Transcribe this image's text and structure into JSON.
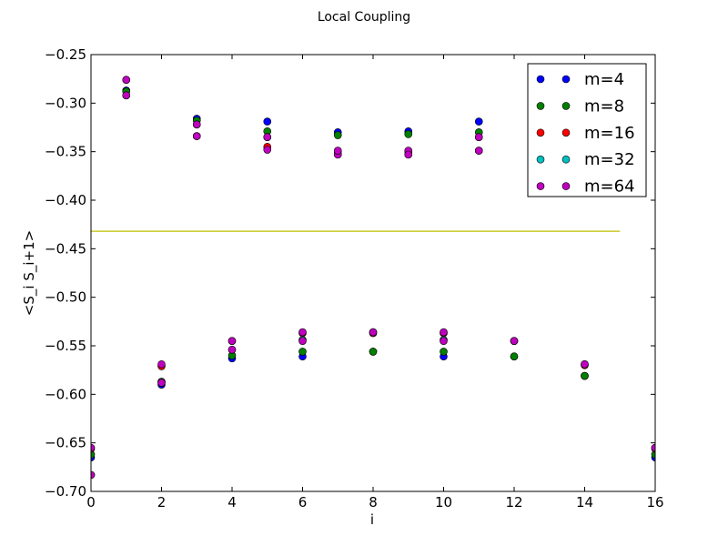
{
  "chart_data": {
    "type": "scatter",
    "title": "Local Coupling",
    "xlabel": "i",
    "ylabel": "<S_i S_i+1>",
    "xlim": [
      0,
      16
    ],
    "ylim": [
      -0.7,
      -0.25
    ],
    "xticks": [
      "0",
      "2",
      "4",
      "6",
      "8",
      "10",
      "12",
      "14",
      "16"
    ],
    "yticks": [
      "−0.70",
      "−0.65",
      "−0.60",
      "−0.55",
      "−0.50",
      "−0.45",
      "−0.40",
      "−0.35",
      "−0.30",
      "−0.25"
    ],
    "legend_position": "top-right",
    "grid": false,
    "series": [
      {
        "name": "m=4",
        "color": "#0000ff",
        "points": [
          [
            0,
            -0.665
          ],
          [
            1,
            -0.287
          ],
          [
            2,
            -0.59
          ],
          [
            3,
            -0.316
          ],
          [
            4,
            -0.563
          ],
          [
            5,
            -0.319
          ],
          [
            6,
            -0.561
          ],
          [
            7,
            -0.33
          ],
          [
            8,
            -0.556
          ],
          [
            9,
            -0.329
          ],
          [
            10,
            -0.561
          ],
          [
            11,
            -0.319
          ],
          [
            12,
            -0.561
          ],
          [
            14,
            -0.581
          ],
          [
            16,
            -0.665
          ]
        ]
      },
      {
        "name": "m=8",
        "color": "#008000",
        "points": [
          [
            0,
            -0.662
          ],
          [
            1,
            -0.288
          ],
          [
            2,
            -0.587
          ],
          [
            3,
            -0.318
          ],
          [
            4,
            -0.56
          ],
          [
            5,
            -0.329
          ],
          [
            6,
            -0.556
          ],
          [
            7,
            -0.333
          ],
          [
            8,
            -0.556
          ],
          [
            9,
            -0.332
          ],
          [
            10,
            -0.556
          ],
          [
            11,
            -0.33
          ],
          [
            12,
            -0.561
          ],
          [
            14,
            -0.581
          ],
          [
            16,
            -0.662
          ]
        ]
      },
      {
        "name": "m=16",
        "color": "#ff0000",
        "points": [
          [
            0,
            -0.656
          ],
          [
            1,
            -0.292
          ],
          [
            2,
            -0.571
          ],
          [
            3,
            -0.334
          ],
          [
            4,
            -0.545
          ],
          [
            5,
            -0.345
          ],
          [
            6,
            -0.537
          ],
          [
            7,
            -0.35
          ],
          [
            8,
            -0.537
          ],
          [
            9,
            -0.35
          ],
          [
            10,
            -0.537
          ],
          [
            11,
            -0.349
          ],
          [
            12,
            -0.545
          ],
          [
            14,
            -0.57
          ],
          [
            16,
            -0.656
          ]
        ]
      },
      {
        "name": "m=32",
        "color": "#00bfbf",
        "points": [
          [
            0,
            -0.683
          ],
          [
            1,
            -0.276
          ],
          [
            2,
            -0.588
          ],
          [
            3,
            -0.322
          ],
          [
            4,
            -0.554
          ],
          [
            5,
            -0.335
          ],
          [
            6,
            -0.544
          ],
          [
            7,
            -0.353
          ],
          [
            8,
            -0.536
          ],
          [
            9,
            -0.353
          ],
          [
            10,
            -0.544
          ],
          [
            11,
            -0.335
          ],
          [
            12,
            -0.545
          ],
          [
            14,
            -0.569
          ],
          [
            16,
            -0.655
          ]
        ]
      },
      {
        "name": "m=64",
        "color": "#bf00bf",
        "points": [
          [
            0,
            -0.655
          ],
          [
            0,
            -0.683
          ],
          [
            1,
            -0.276
          ],
          [
            1,
            -0.292
          ],
          [
            2,
            -0.569
          ],
          [
            2,
            -0.588
          ],
          [
            3,
            -0.334
          ],
          [
            3,
            -0.322
          ],
          [
            4,
            -0.545
          ],
          [
            4,
            -0.554
          ],
          [
            5,
            -0.348
          ],
          [
            5,
            -0.335
          ],
          [
            6,
            -0.536
          ],
          [
            6,
            -0.545
          ],
          [
            7,
            -0.353
          ],
          [
            7,
            -0.349
          ],
          [
            8,
            -0.536
          ],
          [
            9,
            -0.349
          ],
          [
            9,
            -0.353
          ],
          [
            10,
            -0.536
          ],
          [
            10,
            -0.545
          ],
          [
            11,
            -0.349
          ],
          [
            11,
            -0.335
          ],
          [
            12,
            -0.545
          ],
          [
            14,
            -0.569
          ],
          [
            16,
            -0.655
          ]
        ]
      }
    ],
    "reference_line": {
      "y": -0.432,
      "x": [
        0,
        15
      ],
      "color": "#bfbf00"
    }
  }
}
